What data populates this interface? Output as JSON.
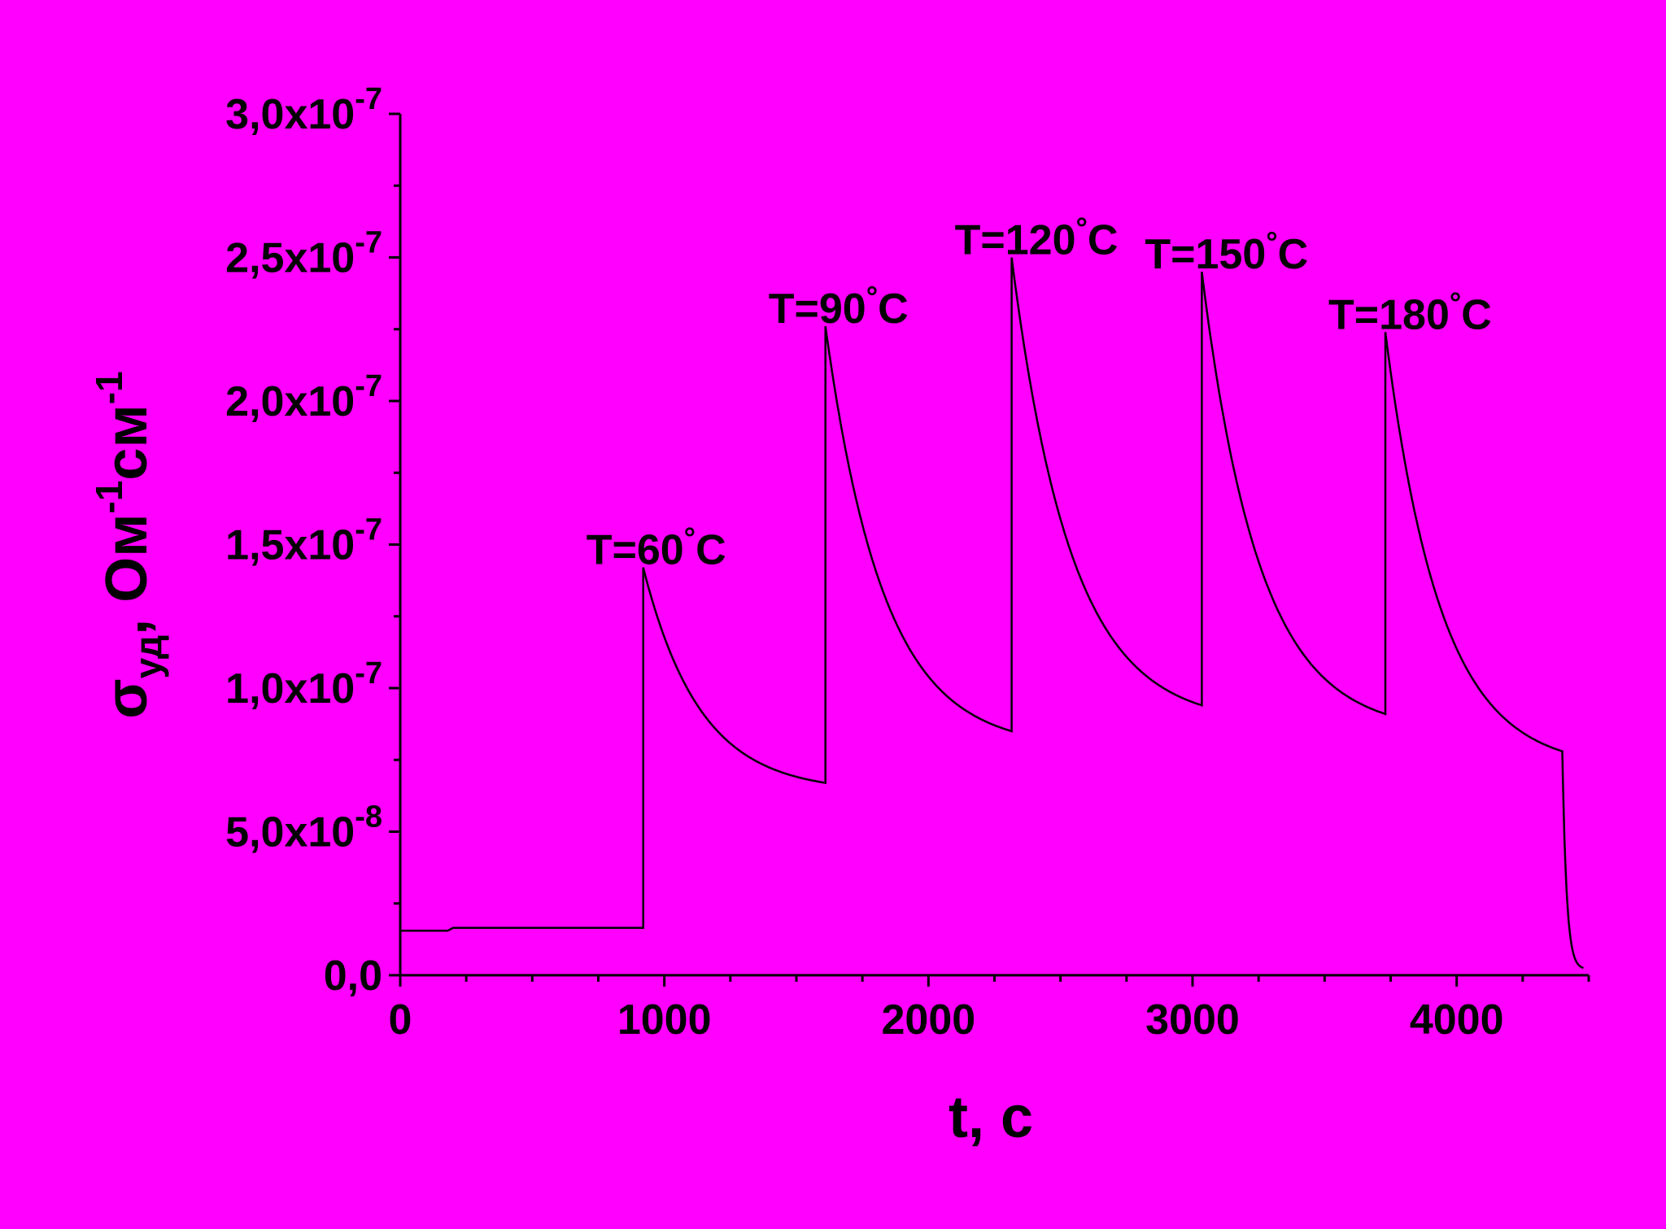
{
  "chart_data": {
    "type": "line",
    "title": "",
    "xlabel": "t, с",
    "ylabel": {
      "sym": "σ",
      "sub": "уд",
      "text": ", Ом",
      "exp1": "-1",
      "mid": "см",
      "exp2": "-1"
    },
    "xlim": [
      0,
      4500
    ],
    "ylim": [
      0,
      3e-07
    ],
    "x_ticks": [
      {
        "value": 0,
        "label": "0"
      },
      {
        "value": 1000,
        "label": "1000"
      },
      {
        "value": 2000,
        "label": "2000"
      },
      {
        "value": 3000,
        "label": "3000"
      },
      {
        "value": 4000,
        "label": "4000"
      }
    ],
    "y_ticks": [
      {
        "value": 0,
        "mant": "0,0",
        "exp": ""
      },
      {
        "value": 5e-08,
        "mant": "5,0x10",
        "exp": "-8"
      },
      {
        "value": 1e-07,
        "mant": "1,0x10",
        "exp": "-7"
      },
      {
        "value": 1.5e-07,
        "mant": "1,5x10",
        "exp": "-7"
      },
      {
        "value": 2e-07,
        "mant": "2,0x10",
        "exp": "-7"
      },
      {
        "value": 2.5e-07,
        "mant": "2,5x10",
        "exp": "-7"
      },
      {
        "value": 3e-07,
        "mant": "3,0x10",
        "exp": "-7"
      }
    ],
    "grid": false,
    "line_color": "#000000",
    "background": "#ff00ff",
    "series": [
      {
        "baseline": {
          "x_start": 0,
          "x_end": 920,
          "y": 1.65e-08
        },
        "segments": [
          {
            "start": 920,
            "end": 1610,
            "peak": 1.42e-07,
            "end_value": 6.7e-08
          },
          {
            "start": 1610,
            "end": 2315,
            "peak": 2.26e-07,
            "end_value": 8.5e-08
          },
          {
            "start": 2315,
            "end": 3035,
            "peak": 2.5e-07,
            "end_value": 9.4e-08
          },
          {
            "start": 3035,
            "end": 3730,
            "peak": 2.45e-07,
            "end_value": 9.1e-08
          },
          {
            "start": 3730,
            "end": 4400,
            "peak": 2.24e-07,
            "end_value": 7.8e-08
          }
        ],
        "tail": {
          "x_start": 4400,
          "x_end": 4480,
          "y_end": 2e-09
        }
      }
    ],
    "annotations": [
      {
        "label": "T=60",
        "unit": "C",
        "x": 920,
        "y": 1.42e-07
      },
      {
        "label": "T=90",
        "unit": "C",
        "x": 1610,
        "y": 2.26e-07
      },
      {
        "label": "T=120",
        "unit": "C",
        "x": 2315,
        "y": 2.5e-07
      },
      {
        "label": "T=150",
        "unit": "C",
        "x": 3035,
        "y": 2.45e-07
      },
      {
        "label": "T=180",
        "unit": "C",
        "x": 3730,
        "y": 2.24e-07
      }
    ]
  }
}
